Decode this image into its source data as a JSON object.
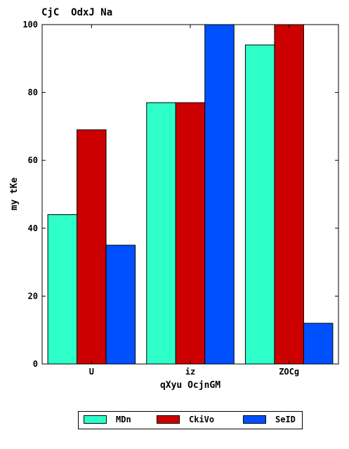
{
  "chart_data": {
    "type": "bar",
    "title": "CjC  OdxJ Na",
    "xlabel": "qXyu OcjnGM",
    "ylabel": "my tKe",
    "categories": [
      "U",
      "iz",
      "ZOCg"
    ],
    "ylim": [
      0,
      100
    ],
    "yticks": [
      0,
      20,
      40,
      60,
      80,
      100
    ],
    "grid": false,
    "legend_position": "bottom-center",
    "series": [
      {
        "name": "MDn",
        "color": "#2effc9",
        "values": [
          44,
          77,
          94
        ]
      },
      {
        "name": "CkiVo",
        "color": "#cc0000",
        "values": [
          69,
          77,
          100
        ]
      },
      {
        "name": "SeID",
        "color": "#0050ff",
        "values": [
          35,
          100,
          12
        ]
      }
    ]
  }
}
